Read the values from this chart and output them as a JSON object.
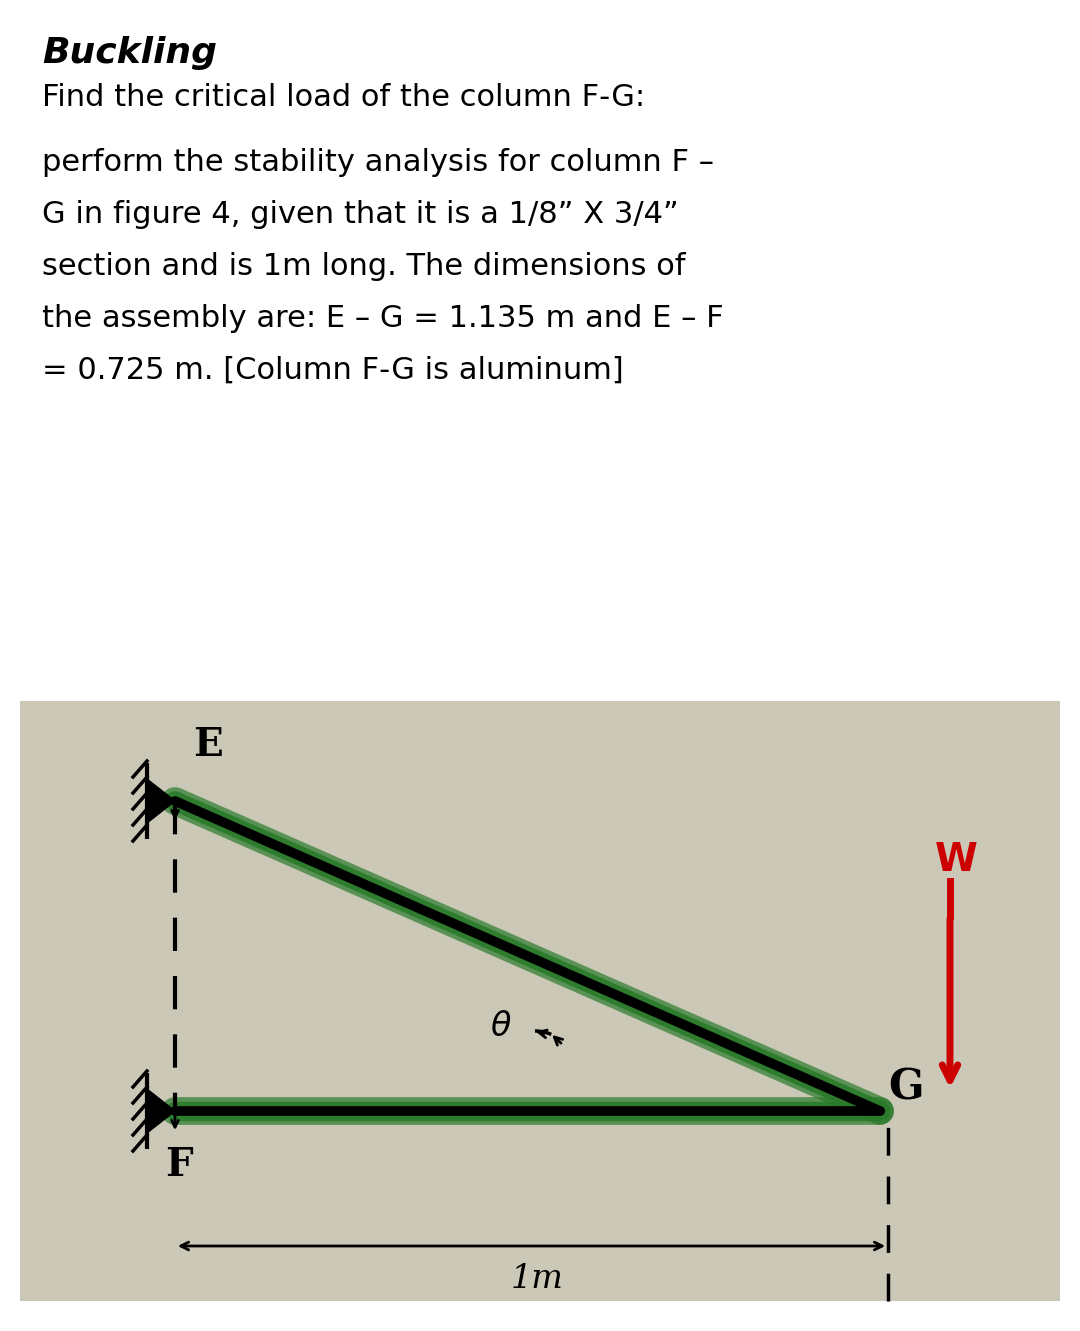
{
  "title": "Buckling",
  "line1": "Find the critical load of the column F-G:",
  "para": "perform the stability analysis for column F –\nG in figure 4, given that it is a 1/8” X 3/4”\nsection and is 1m long. The dimensions of\nthe assembly are: E – G = 1.135 m and E – F\n= 0.725 m. [Column F-G is aluminum]",
  "bg_color": "#ffffff",
  "text_color": "#000000",
  "diag_bg": "#ccc8b8",
  "green_color": "#2a7a2a",
  "red_color": "#cc0000",
  "title_fontsize": 26,
  "body_fontsize": 22
}
